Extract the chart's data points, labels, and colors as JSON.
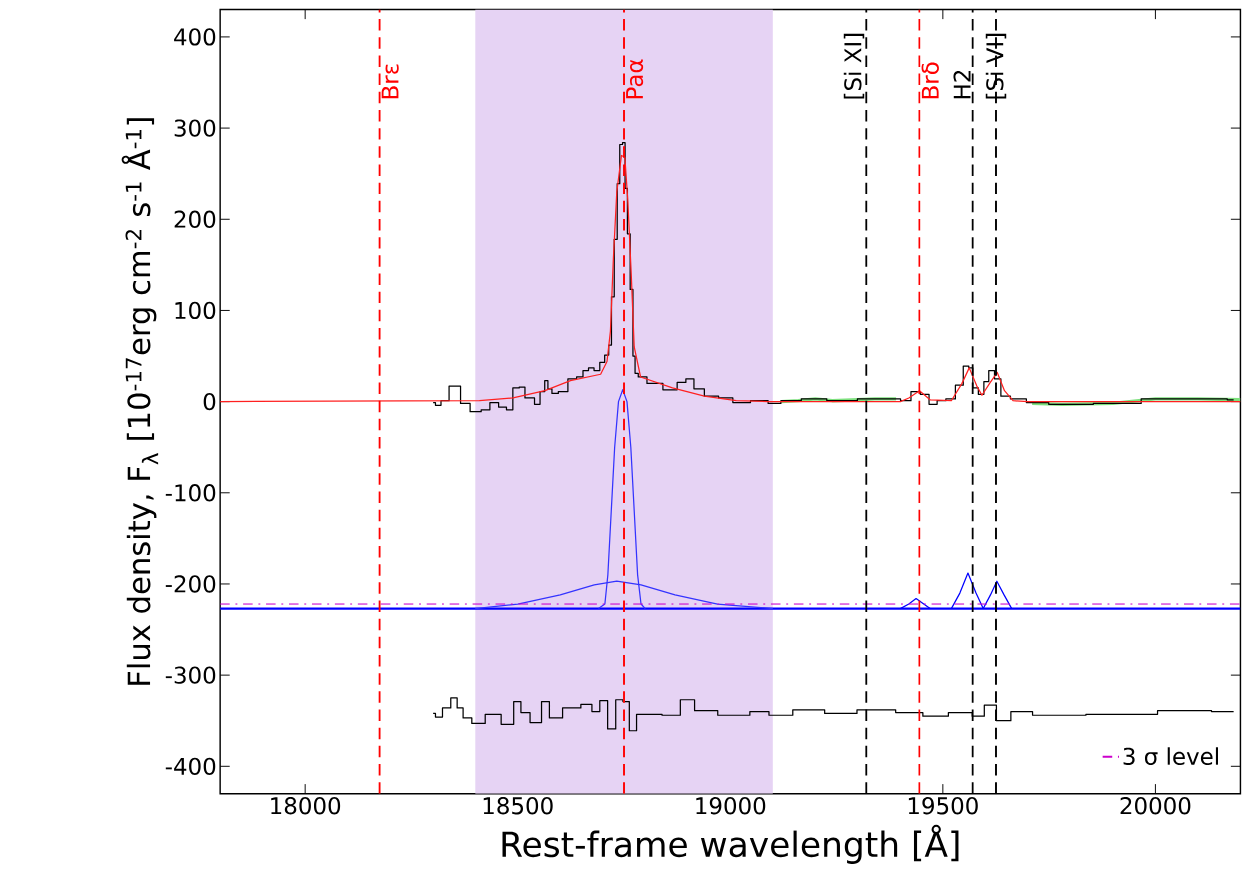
{
  "chart_data": {
    "type": "line",
    "xlabel": "Rest-frame wavelength [Å]",
    "ylabel": "Flux density, F$_{λ}$ [10$^{-17}$erg cm$^{-2}$ s$^{-1}$ Å$^{-1}$]",
    "xlim": [
      17800,
      20200
    ],
    "ylim": [
      -430,
      430
    ],
    "xticks": [
      18000,
      18500,
      19000,
      19500,
      20000
    ],
    "yticks": [
      -400,
      -300,
      -200,
      -100,
      0,
      100,
      200,
      300,
      400
    ],
    "legend": "bottom right",
    "marker": "none",
    "bands": [
      {
        "axis": "x",
        "from": 18400,
        "to": 19100,
        "color": "#e6d3f4"
      }
    ],
    "ref_lines": [
      {
        "axis": "x",
        "value": 18175,
        "label": "Brε",
        "color": "#ff0000",
        "line_style": "dashed"
      },
      {
        "axis": "x",
        "value": 18750,
        "label": "Paα",
        "color": "#ff0000",
        "line_style": "dashed"
      },
      {
        "axis": "x",
        "value": 19320,
        "label": "[Si XI]",
        "color": "#000000",
        "line_style": "dashed"
      },
      {
        "axis": "x",
        "value": 19445,
        "label": "Brδ",
        "color": "#ff0000",
        "line_style": "dashed"
      },
      {
        "axis": "x",
        "value": 19570,
        "label": "H2",
        "color": "#000000",
        "line_style": "dashed"
      },
      {
        "axis": "x",
        "value": 19625,
        "label": "[Si VI]",
        "color": "#000000",
        "line_style": "dashed"
      }
    ],
    "series": [
      {
        "color": "#7ee07e",
        "x": [
          19120,
          19160,
          19200,
          19240,
          19300,
          19340,
          19390,
          19400,
          19710,
          19780,
          19900,
          20000,
          20100,
          20200
        ],
        "values": [
          0,
          1,
          3,
          1,
          2,
          3,
          3,
          null,
          -2,
          -3,
          -2,
          3,
          3,
          2
        ]
      },
      {
        "type": "step",
        "color": "#000000",
        "x": [
          18301,
          18312,
          18327,
          18350,
          18358,
          18373,
          18403,
          18425,
          18444,
          18466,
          18481,
          18496,
          18511,
          18523,
          18534,
          18545,
          18560,
          18567,
          18575,
          18586,
          18605,
          18631,
          18646,
          18661,
          18672,
          18687,
          18699,
          18710,
          18718,
          18723,
          18731,
          18737,
          18743,
          18750,
          18755,
          18761,
          18768,
          18774,
          18778,
          18789,
          18819,
          18864,
          18886,
          18905,
          18924,
          18954,
          18991,
          19021,
          19074,
          19104,
          19134,
          19200,
          19254,
          19344,
          19389,
          19412,
          19438,
          19456,
          19479,
          19494,
          19520,
          19539,
          19557,
          19565,
          19576,
          19591,
          19602,
          19614,
          19629,
          19644,
          19674,
          19719,
          19779,
          19929,
          20004,
          20154,
          20184
        ],
        "values": [
          -1,
          -4,
          1,
          17,
          17,
          -2,
          -11,
          -9,
          -1,
          -6,
          -9,
          15,
          16,
          4,
          4,
          -3,
          11,
          23,
          14,
          9,
          11,
          25,
          27,
          34,
          37,
          34,
          43,
          51,
          62,
          115,
          178,
          239,
          282,
          284,
          234,
          184,
          123,
          50,
          31,
          27,
          20,
          13,
          21,
          25,
          14,
          6,
          4,
          -1,
          1,
          -2,
          1,
          3,
          1,
          3,
          3,
          1,
          11,
          8,
          -3,
          1,
          3,
          18,
          39,
          37,
          15,
          8,
          22,
          34,
          25,
          6,
          3,
          -1,
          -3,
          -2,
          3,
          3,
          2
        ]
      },
      {
        "color": "#ff2020",
        "x": [
          17800,
          18410,
          18489,
          18564,
          18624,
          18695,
          18710,
          18718,
          18725,
          18733,
          18744,
          18752,
          18759,
          18767,
          18774,
          18789,
          18864,
          18939,
          19014,
          19089,
          19400,
          19420,
          19445,
          19470,
          19520,
          19545,
          19562,
          19580,
          19592,
          19610,
          19628,
          19645,
          19665,
          19700,
          20200
        ],
        "values": [
          0,
          1,
          4,
          12,
          23,
          30,
          44,
          77,
          157,
          230,
          270,
          268,
          220,
          140,
          60,
          27,
          15,
          6,
          1,
          0,
          0,
          4,
          12,
          2,
          1,
          20,
          37,
          17,
          7,
          20,
          32,
          12,
          1,
          0,
          0
        ]
      },
      {
        "color": "#0000ff",
        "x": [
          17800,
          20200
        ],
        "values": [
          -227,
          -227
        ]
      },
      {
        "color": "#3333ff",
        "x": [
          18400,
          18500,
          18600,
          18680,
          18733,
          18790,
          18870,
          18970,
          19100
        ],
        "values": [
          -227,
          -222,
          -212,
          -201,
          -197,
          -201,
          -212,
          -222,
          -227
        ]
      },
      {
        "color": "#3333ff",
        "x": [
          18690,
          18705,
          18712,
          18720,
          18728,
          18737,
          18747,
          18757,
          18766,
          18774,
          18782,
          18790,
          18800
        ],
        "values": [
          -227,
          -222,
          -190,
          -120,
          -50,
          0,
          13,
          0,
          -50,
          -120,
          -190,
          -222,
          -227
        ]
      },
      {
        "color": "#0000ff",
        "x": [
          19400,
          19420,
          19437,
          19455,
          19470
        ],
        "values": [
          -227,
          -222,
          -216,
          -222,
          -227
        ]
      },
      {
        "color": "#0000ff",
        "x": [
          19520,
          19540,
          19559,
          19578,
          19595
        ],
        "values": [
          -227,
          -210,
          -188,
          -210,
          -227
        ]
      },
      {
        "color": "#0000ff",
        "x": [
          19595,
          19612,
          19627,
          19644,
          19662
        ],
        "values": [
          -227,
          -212,
          -197,
          -212,
          -227
        ]
      },
      {
        "name": "3 σ level",
        "color": "#cc00cc",
        "line_style": "dashdot",
        "x": [
          17800,
          20200
        ],
        "values": [
          -222,
          -222
        ]
      },
      {
        "type": "step",
        "color": "#000000",
        "x": [
          18301,
          18312,
          18334,
          18351,
          18364,
          18379,
          18405,
          18442,
          18480,
          18501,
          18514,
          18544,
          18568,
          18581,
          18630,
          18667,
          18682,
          18704,
          18719,
          18742,
          18753,
          18772,
          18787,
          18817,
          18862,
          18903,
          18929,
          19012,
          19080,
          19102,
          19192,
          19252,
          19344,
          19434,
          19472,
          19554,
          19584,
          19611,
          19641,
          19679,
          19743,
          19930,
          20080,
          20184
        ],
        "values": [
          -342,
          -346,
          -336,
          -325,
          -336,
          -347,
          -353,
          -343,
          -354,
          -329,
          -341,
          -352,
          -329,
          -347,
          -336,
          -332,
          -340,
          -328,
          -359,
          -327,
          -329,
          -361,
          -343,
          -343,
          -344,
          -327,
          -339,
          -344,
          -340,
          -344,
          -338,
          -342,
          -338,
          -341,
          -345,
          -341,
          -345,
          -333,
          -350,
          -340,
          -344,
          -343,
          -339,
          -340
        ]
      }
    ]
  }
}
